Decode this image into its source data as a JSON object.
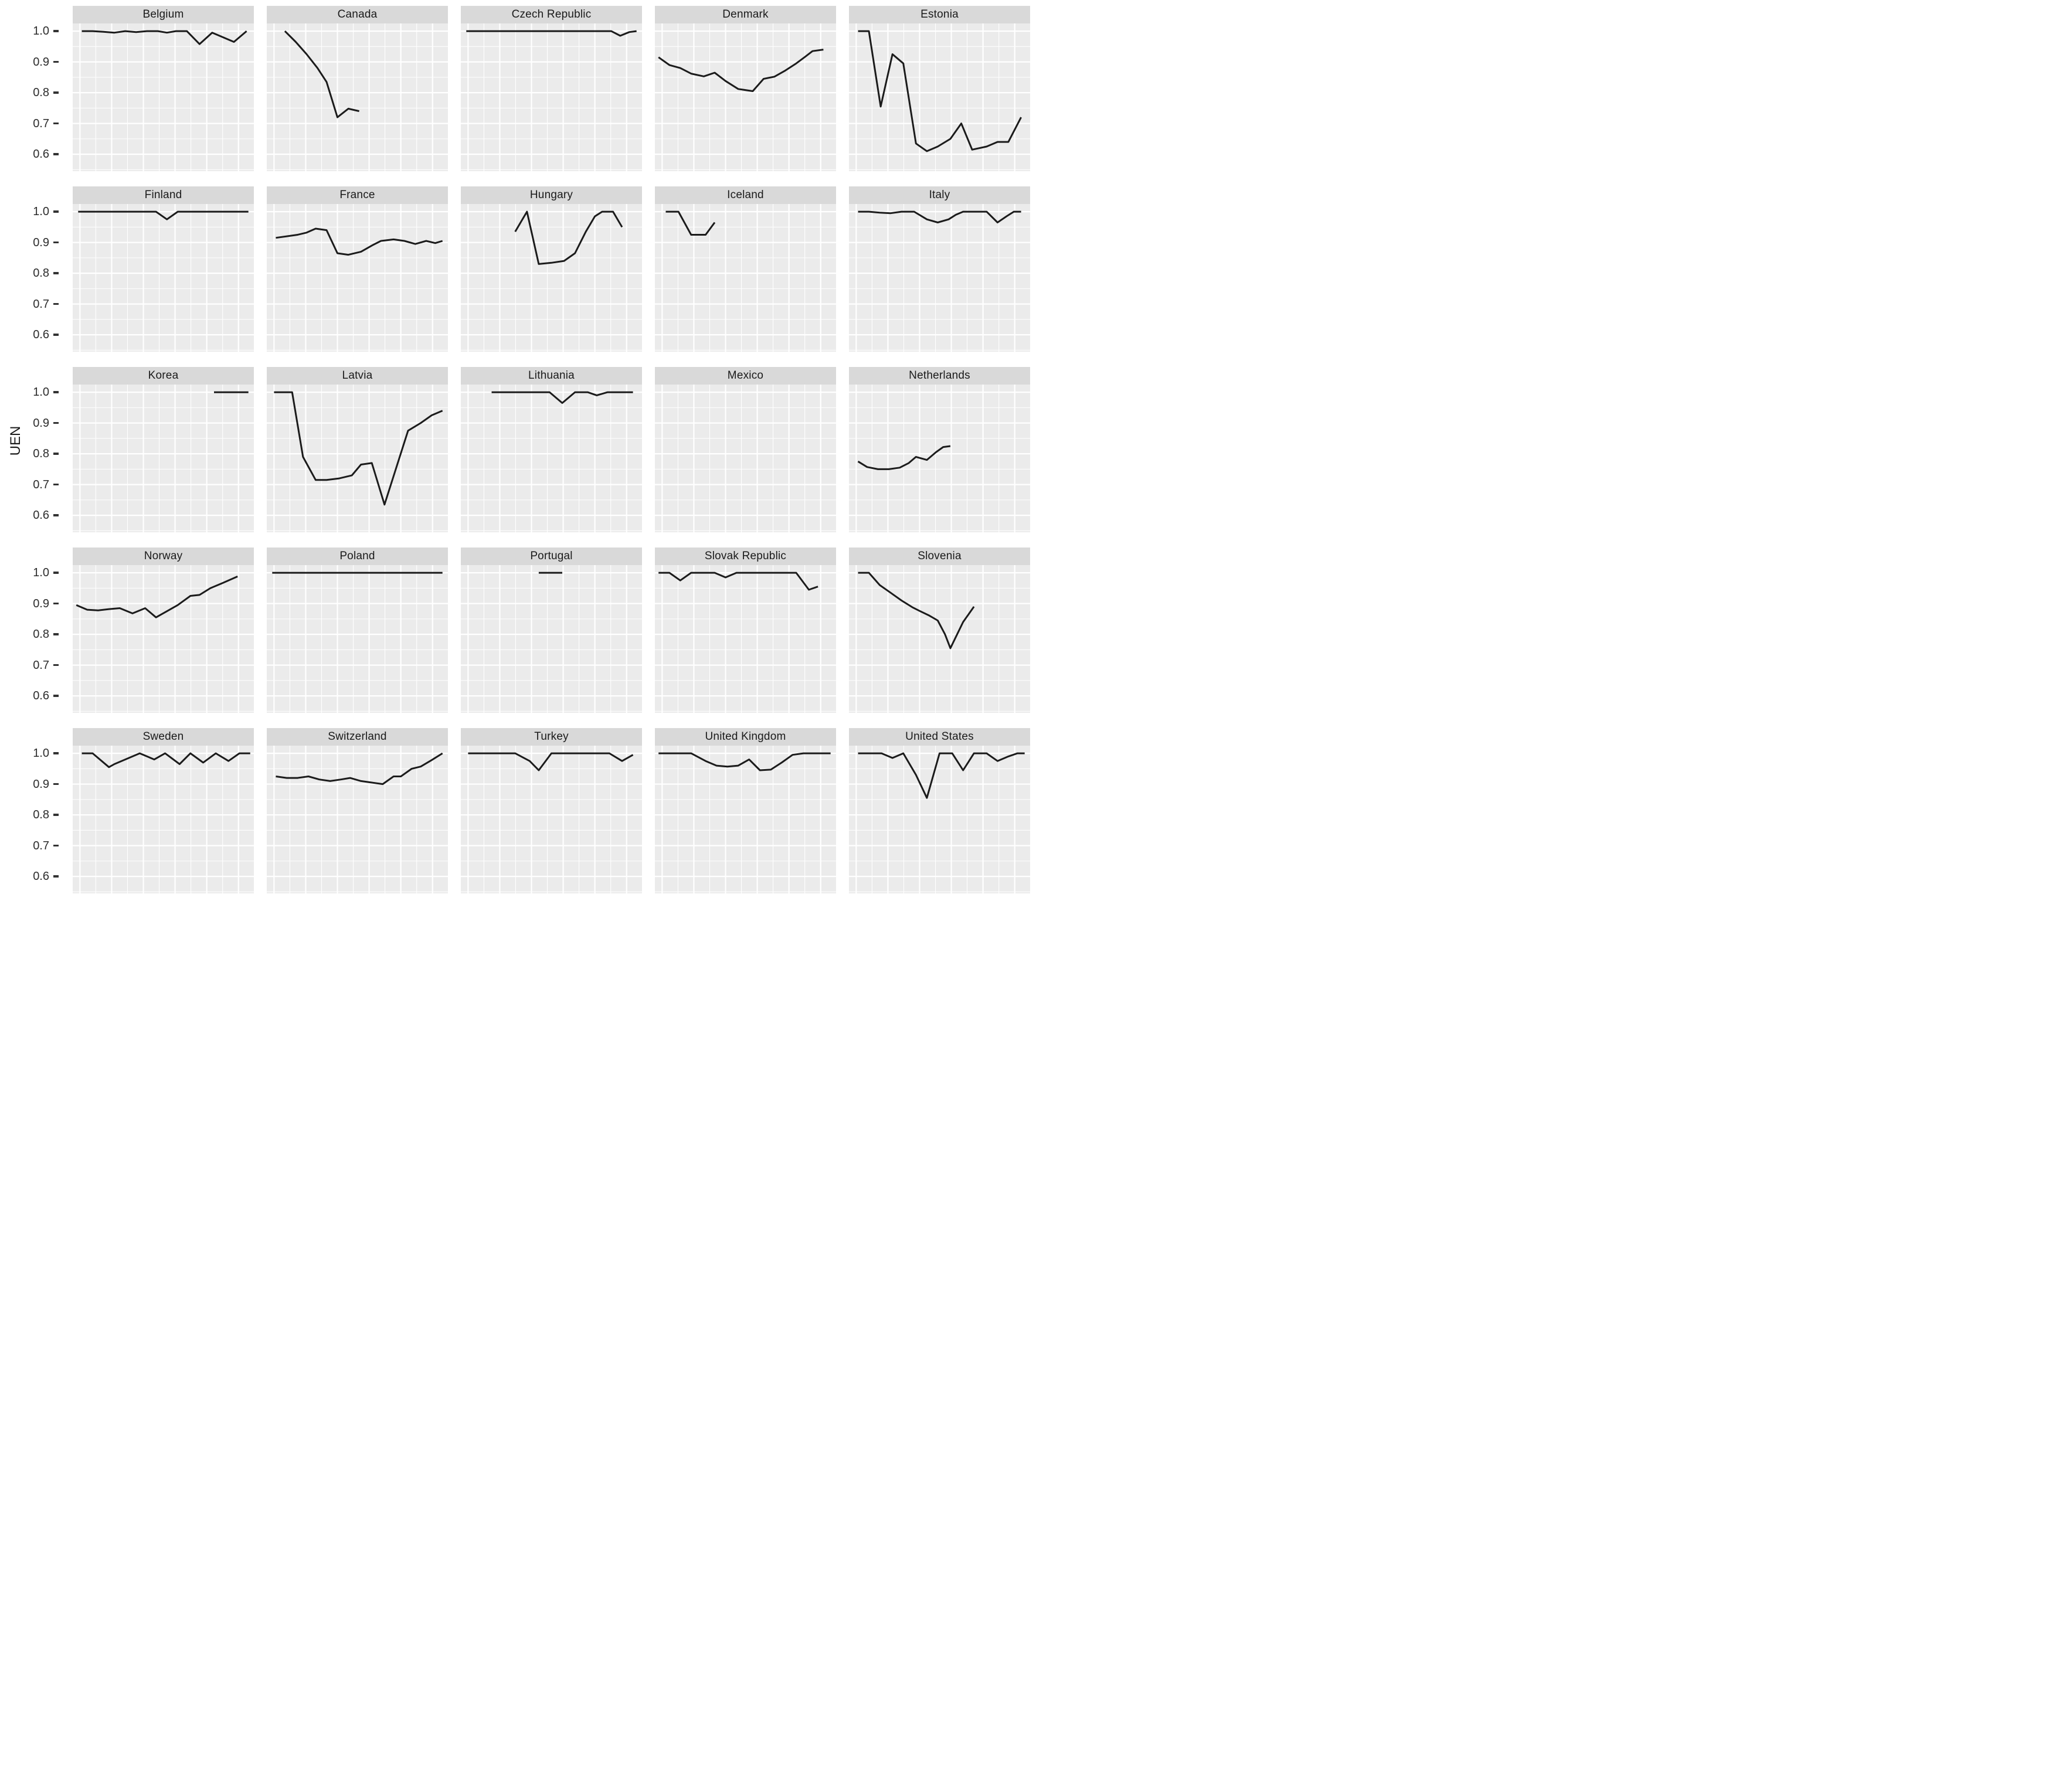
{
  "figure": {
    "type_hint": "faceted-line-chart"
  },
  "colors": {
    "panel_background": "#ebebeb",
    "strip_background": "#d9d9d9",
    "gridline": "#ffffff",
    "line": "#1b1b1b",
    "strip_text": "#1a1a1a",
    "axis_text": "#2b2b2b",
    "tick_mark": "#333333"
  },
  "chart_data": {
    "type": "line",
    "title": "",
    "xlabel": "",
    "ylabel": "UEN",
    "legend": "none",
    "grid": "on",
    "y_ticks": [
      {
        "label": "1.0",
        "value": 1.0
      },
      {
        "label": "0.9",
        "value": 0.9
      },
      {
        "label": "0.8",
        "value": 0.8
      },
      {
        "label": "0.7",
        "value": 0.7
      },
      {
        "label": "0.6",
        "value": 0.6
      }
    ],
    "layout": {
      "rows": 5,
      "cols": 5,
      "y_domain": [
        0.545,
        1.025
      ],
      "grid_major_y": [
        1.0,
        0.9,
        0.8,
        0.7,
        0.6
      ],
      "grid_minor_y": [
        0.95,
        0.85,
        0.75,
        0.65,
        0.55
      ],
      "grid_major_x": [
        0.04,
        0.215,
        0.39,
        0.565,
        0.74,
        0.915
      ],
      "grid_minor_x": [
        0.1275,
        0.3025,
        0.4775,
        0.6525,
        0.8275
      ]
    },
    "facets": [
      {
        "name": "Belgium",
        "x": [
          0.05,
          0.11,
          0.17,
          0.23,
          0.29,
          0.35,
          0.41,
          0.47,
          0.52,
          0.57,
          0.63,
          0.7,
          0.77,
          0.83,
          0.89,
          0.96
        ],
        "y": [
          1.0,
          1.0,
          0.998,
          0.995,
          1.0,
          0.997,
          1.0,
          1.0,
          0.995,
          1.0,
          1.0,
          0.958,
          0.995,
          0.98,
          0.965,
          1.0
        ]
      },
      {
        "name": "Canada",
        "x": [
          0.1,
          0.16,
          0.22,
          0.28,
          0.33,
          0.39,
          0.45,
          0.51
        ],
        "y": [
          1.0,
          0.965,
          0.925,
          0.88,
          0.835,
          0.72,
          0.748,
          0.74
        ]
      },
      {
        "name": "Czech Republic",
        "x": [
          0.03,
          0.2,
          0.4,
          0.6,
          0.75,
          0.83,
          0.88,
          0.93,
          0.97
        ],
        "y": [
          1.0,
          1.0,
          1.0,
          1.0,
          1.0,
          1.0,
          0.985,
          0.997,
          1.0
        ]
      },
      {
        "name": "Denmark",
        "x": [
          0.02,
          0.08,
          0.14,
          0.2,
          0.27,
          0.33,
          0.39,
          0.46,
          0.54,
          0.6,
          0.66,
          0.72,
          0.78,
          0.83,
          0.87,
          0.93
        ],
        "y": [
          0.915,
          0.89,
          0.88,
          0.862,
          0.853,
          0.865,
          0.838,
          0.812,
          0.805,
          0.845,
          0.852,
          0.872,
          0.895,
          0.917,
          0.935,
          0.94
        ]
      },
      {
        "name": "Estonia",
        "x": [
          0.05,
          0.11,
          0.175,
          0.24,
          0.3,
          0.37,
          0.43,
          0.49,
          0.56,
          0.62,
          0.68,
          0.76,
          0.82,
          0.88,
          0.95
        ],
        "y": [
          1.0,
          1.0,
          0.755,
          0.925,
          0.895,
          0.635,
          0.61,
          0.625,
          0.65,
          0.7,
          0.615,
          0.625,
          0.64,
          0.64,
          0.72
        ]
      },
      {
        "name": "Finland",
        "x": [
          0.03,
          0.15,
          0.27,
          0.39,
          0.46,
          0.52,
          0.58,
          0.7,
          0.82,
          0.97
        ],
        "y": [
          1.0,
          1.0,
          1.0,
          1.0,
          1.0,
          0.975,
          1.0,
          1.0,
          1.0,
          1.0
        ]
      },
      {
        "name": "France",
        "x": [
          0.05,
          0.11,
          0.17,
          0.22,
          0.27,
          0.33,
          0.39,
          0.45,
          0.52,
          0.58,
          0.63,
          0.7,
          0.76,
          0.82,
          0.88,
          0.93,
          0.97
        ],
        "y": [
          0.915,
          0.92,
          0.925,
          0.932,
          0.945,
          0.94,
          0.865,
          0.86,
          0.87,
          0.89,
          0.905,
          0.91,
          0.905,
          0.895,
          0.905,
          0.898,
          0.905
        ]
      },
      {
        "name": "Hungary",
        "x": [
          0.3,
          0.365,
          0.43,
          0.5,
          0.57,
          0.63,
          0.69,
          0.74,
          0.78,
          0.84,
          0.89
        ],
        "y": [
          0.935,
          1.0,
          0.83,
          0.834,
          0.84,
          0.865,
          0.935,
          0.985,
          1.0,
          1.0,
          0.95
        ]
      },
      {
        "name": "Iceland",
        "x": [
          0.06,
          0.13,
          0.2,
          0.28,
          0.33
        ],
        "y": [
          1.0,
          1.0,
          0.925,
          0.925,
          0.965
        ]
      },
      {
        "name": "Italy",
        "x": [
          0.05,
          0.11,
          0.17,
          0.23,
          0.29,
          0.36,
          0.43,
          0.49,
          0.55,
          0.59,
          0.63,
          0.7,
          0.76,
          0.82,
          0.87,
          0.91,
          0.95
        ],
        "y": [
          1.0,
          1.0,
          0.997,
          0.995,
          1.0,
          1.0,
          0.975,
          0.965,
          0.975,
          0.99,
          1.0,
          1.0,
          1.0,
          0.965,
          0.985,
          1.0,
          1.0
        ]
      },
      {
        "name": "Korea",
        "x": [
          0.78,
          0.88,
          0.97
        ],
        "y": [
          1.0,
          1.0,
          1.0
        ]
      },
      {
        "name": "Latvia",
        "x": [
          0.04,
          0.14,
          0.2,
          0.27,
          0.33,
          0.4,
          0.47,
          0.52,
          0.58,
          0.65,
          0.78,
          0.85,
          0.91,
          0.97
        ],
        "y": [
          1.0,
          1.0,
          0.79,
          0.715,
          0.715,
          0.72,
          0.73,
          0.765,
          0.77,
          0.635,
          0.875,
          0.9,
          0.925,
          0.94
        ]
      },
      {
        "name": "Lithuania",
        "x": [
          0.17,
          0.28,
          0.38,
          0.49,
          0.56,
          0.63,
          0.7,
          0.75,
          0.81,
          0.88,
          0.95
        ],
        "y": [
          1.0,
          1.0,
          1.0,
          1.0,
          0.965,
          1.0,
          1.0,
          0.99,
          1.0,
          1.0,
          1.0
        ]
      },
      {
        "name": "Mexico",
        "x": [],
        "y": []
      },
      {
        "name": "Netherlands",
        "x": [
          0.05,
          0.1,
          0.16,
          0.22,
          0.28,
          0.33,
          0.37,
          0.43,
          0.48,
          0.52,
          0.56
        ],
        "y": [
          0.775,
          0.757,
          0.75,
          0.75,
          0.755,
          0.77,
          0.79,
          0.78,
          0.805,
          0.822,
          0.825
        ]
      },
      {
        "name": "Norway",
        "x": [
          0.02,
          0.08,
          0.14,
          0.2,
          0.26,
          0.33,
          0.4,
          0.46,
          0.52,
          0.58,
          0.65,
          0.7,
          0.76,
          0.84,
          0.91
        ],
        "y": [
          0.895,
          0.88,
          0.878,
          0.882,
          0.885,
          0.868,
          0.885,
          0.855,
          0.875,
          0.895,
          0.925,
          0.928,
          0.95,
          0.97,
          0.988
        ]
      },
      {
        "name": "Poland",
        "x": [
          0.03,
          0.97
        ],
        "y": [
          1.0,
          1.0
        ]
      },
      {
        "name": "Portugal",
        "x": [
          0.43,
          0.56
        ],
        "y": [
          1.0,
          1.0
        ]
      },
      {
        "name": "Slovak Republic",
        "x": [
          0.02,
          0.08,
          0.14,
          0.2,
          0.27,
          0.33,
          0.39,
          0.45,
          0.52,
          0.6,
          0.68,
          0.78,
          0.85,
          0.9
        ],
        "y": [
          1.0,
          1.0,
          0.975,
          1.0,
          1.0,
          1.0,
          0.985,
          1.0,
          1.0,
          1.0,
          1.0,
          1.0,
          0.945,
          0.955
        ]
      },
      {
        "name": "Slovenia",
        "x": [
          0.05,
          0.11,
          0.17,
          0.23,
          0.29,
          0.35,
          0.39,
          0.44,
          0.49,
          0.53,
          0.56,
          0.63,
          0.69
        ],
        "y": [
          1.0,
          1.0,
          0.96,
          0.935,
          0.91,
          0.888,
          0.876,
          0.862,
          0.845,
          0.8,
          0.755,
          0.84,
          0.89
        ]
      },
      {
        "name": "Sweden",
        "x": [
          0.05,
          0.11,
          0.2,
          0.23,
          0.31,
          0.37,
          0.45,
          0.51,
          0.59,
          0.65,
          0.72,
          0.79,
          0.86,
          0.92,
          0.98
        ],
        "y": [
          1.0,
          1.0,
          0.955,
          0.965,
          0.985,
          1.0,
          0.98,
          1.0,
          0.965,
          1.0,
          0.97,
          1.0,
          0.975,
          1.0,
          1.0
        ]
      },
      {
        "name": "Switzerland",
        "x": [
          0.05,
          0.11,
          0.17,
          0.23,
          0.29,
          0.35,
          0.41,
          0.46,
          0.52,
          0.58,
          0.64,
          0.7,
          0.74,
          0.8,
          0.85,
          0.91,
          0.97
        ],
        "y": [
          0.925,
          0.92,
          0.92,
          0.925,
          0.915,
          0.91,
          0.915,
          0.92,
          0.91,
          0.905,
          0.9,
          0.925,
          0.925,
          0.95,
          0.957,
          0.978,
          1.0
        ]
      },
      {
        "name": "Turkey",
        "x": [
          0.04,
          0.12,
          0.2,
          0.3,
          0.38,
          0.43,
          0.5,
          0.58,
          0.66,
          0.74,
          0.82,
          0.89,
          0.95
        ],
        "y": [
          1.0,
          1.0,
          1.0,
          1.0,
          0.975,
          0.945,
          1.0,
          1.0,
          1.0,
          1.0,
          1.0,
          0.975,
          0.995
        ]
      },
      {
        "name": "United Kingdom",
        "x": [
          0.02,
          0.08,
          0.14,
          0.2,
          0.28,
          0.34,
          0.4,
          0.46,
          0.52,
          0.58,
          0.64,
          0.7,
          0.76,
          0.82,
          0.9,
          0.97
        ],
        "y": [
          1.0,
          1.0,
          1.0,
          1.0,
          0.975,
          0.96,
          0.957,
          0.96,
          0.98,
          0.945,
          0.947,
          0.97,
          0.995,
          1.0,
          1.0,
          1.0
        ]
      },
      {
        "name": "United States",
        "x": [
          0.05,
          0.12,
          0.18,
          0.24,
          0.3,
          0.37,
          0.43,
          0.5,
          0.57,
          0.63,
          0.69,
          0.76,
          0.82,
          0.88,
          0.93,
          0.97
        ],
        "y": [
          1.0,
          1.0,
          1.0,
          0.985,
          1.0,
          0.93,
          0.855,
          1.0,
          1.0,
          0.945,
          1.0,
          1.0,
          0.975,
          0.99,
          1.0,
          1.0
        ]
      }
    ]
  }
}
